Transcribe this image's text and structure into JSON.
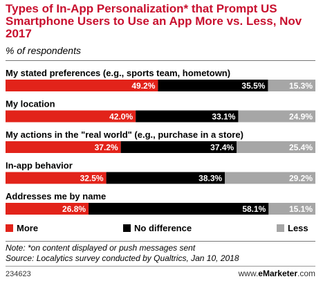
{
  "footer": {
    "note": "Note: *on content displayed or push messages sent",
    "source": "Source: Localytics survey conducted by Qualtrics, Jan 10, 2018",
    "chart_id": "234623",
    "brand_prefix": "www.",
    "brand_name": "eMarketer",
    "brand_suffix": ".com"
  },
  "colors": {
    "more": "#e2231a",
    "no_difference": "#000000",
    "less": "#a6a6a6",
    "title": "#c8102e"
  },
  "chart_data": {
    "type": "bar",
    "stacked": true,
    "orientation": "horizontal",
    "title": "Types of In-App Personalization* that Prompt US Smartphone Users to Use an App More vs. Less, Nov 2017",
    "subtitle": "% of respondents",
    "unit": "%",
    "categories": [
      "My stated preferences (e.g., sports team, hometown)",
      "My location",
      "My actions in the \"real world\" (e.g., purchase in a store)",
      "In-app behavior",
      "Addresses me by name"
    ],
    "series": [
      {
        "name": "More",
        "values": [
          49.2,
          42.0,
          37.2,
          32.5,
          26.8
        ]
      },
      {
        "name": "No difference",
        "values": [
          35.5,
          33.1,
          37.4,
          38.3,
          58.1
        ]
      },
      {
        "name": "Less",
        "values": [
          15.3,
          24.9,
          25.4,
          29.2,
          15.1
        ]
      }
    ],
    "legend_position": "bottom",
    "grid": false
  }
}
